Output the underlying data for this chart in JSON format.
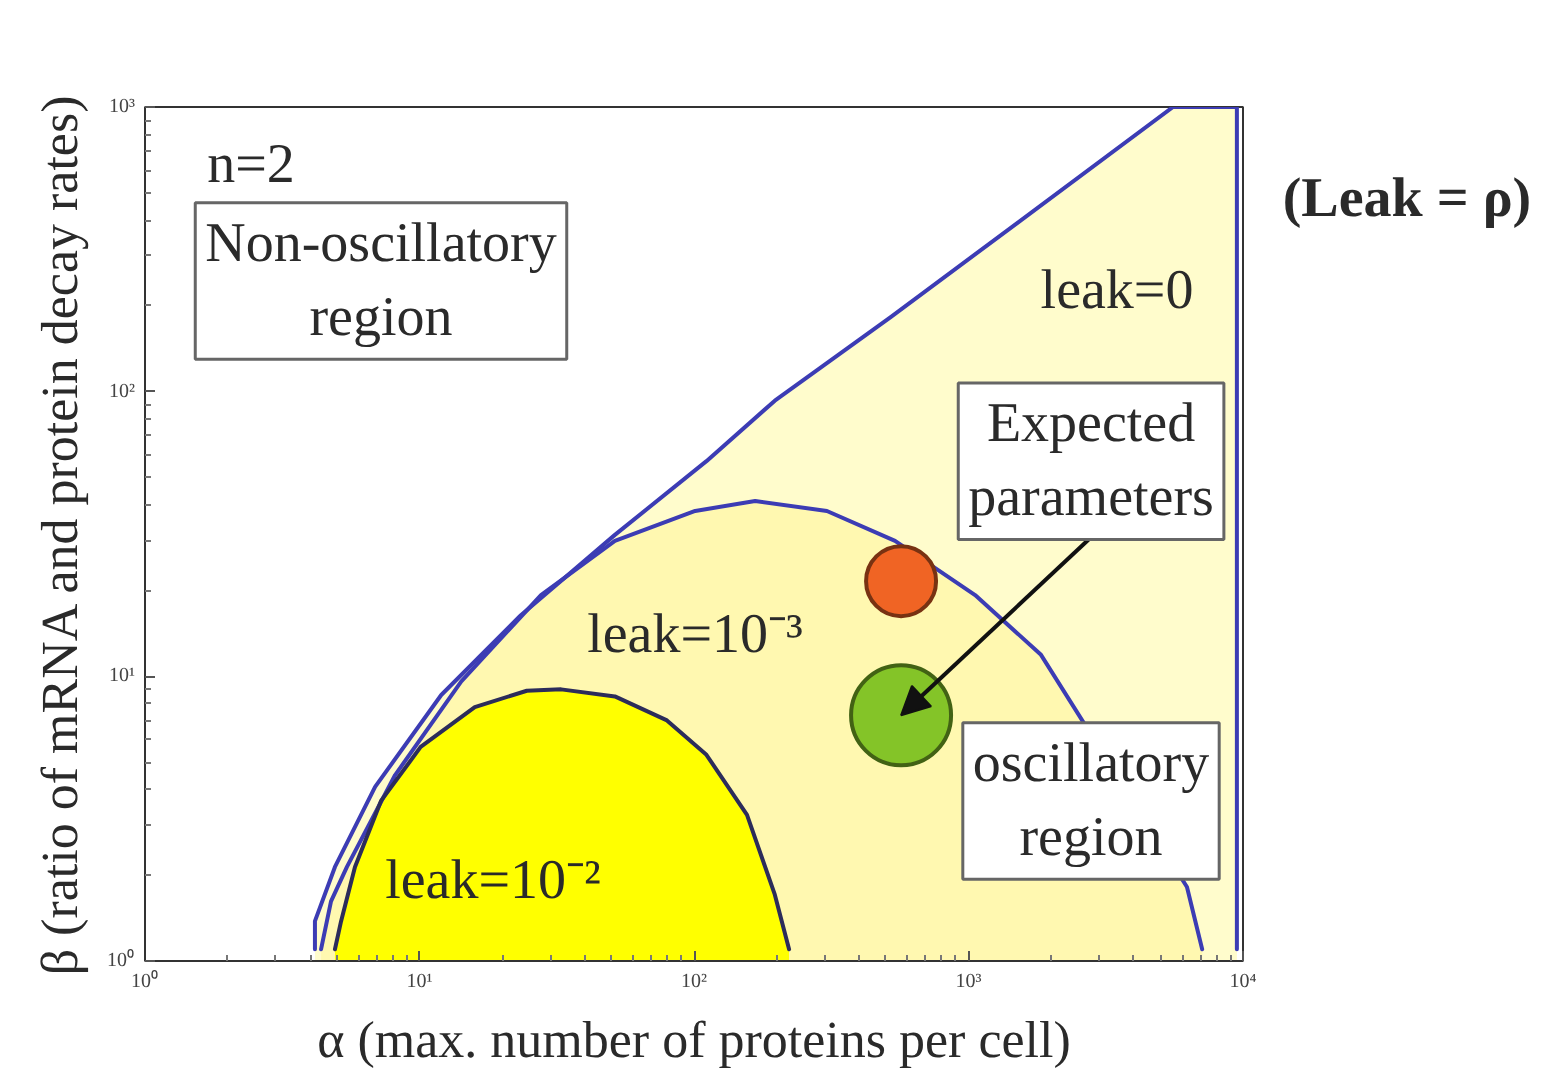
{
  "chart_data": {
    "type": "area",
    "xlabel": "α (max. number of proteins per cell)",
    "ylabel": "β (ratio of mRNA and protein decay rates)",
    "log": "xy",
    "xlim": [
      1,
      10000
    ],
    "ylim": [
      1,
      1000
    ],
    "xticks": [
      {
        "value": 1,
        "label": "10⁰"
      },
      {
        "value": 10,
        "label": "10¹"
      },
      {
        "value": 100,
        "label": "10²"
      },
      {
        "value": 1000,
        "label": "10³"
      },
      {
        "value": 10000,
        "label": "10⁴"
      }
    ],
    "yticks": [
      {
        "value": 1,
        "label": "10⁰"
      },
      {
        "value": 10,
        "label": "10¹"
      },
      {
        "value": 100,
        "label": "10²"
      },
      {
        "value": 1000,
        "label": "10³"
      }
    ],
    "series": [
      {
        "type": "line",
        "color": "#3c3cb4",
        "x": [
          4.16,
          4.16,
          4.92,
          6.89,
          12.0,
          23.4,
          51.5,
          111,
          197,
          522,
          5560,
          9500,
          9500
        ],
        "values": [
          1.1,
          1.38,
          2.14,
          4.09,
          8.6,
          16.4,
          31.4,
          57,
          93,
          183,
          1000,
          1000,
          1.1
        ]
      },
      {
        "type": "line",
        "color": "#3c3cb4",
        "x": [
          4.38,
          4.76,
          5.44,
          8.15,
          14.2,
          27.7,
          51.5,
          101,
          167,
          305,
          540,
          1057,
          1837,
          6250,
          7100
        ],
        "values": [
          1.1,
          1.62,
          2.14,
          4.5,
          9.6,
          19.3,
          29.9,
          38.1,
          41.3,
          38.1,
          29.9,
          19.3,
          11.9,
          1.82,
          1.1
        ]
      },
      {
        "type": "line",
        "color": "#2c2c5a",
        "x": [
          4.92,
          5.18,
          5.82,
          7.24,
          10.1,
          15.9,
          24.6,
          32.8,
          51.5,
          79.7,
          111,
          156,
          197,
          222
        ],
        "values": [
          1.1,
          1.38,
          2.14,
          3.65,
          5.65,
          7.8,
          8.9,
          9.0,
          8.5,
          7.0,
          5.3,
          3.26,
          1.71,
          1.1
        ]
      },
      {
        "color": "#fffccc",
        "x": [
          4.16,
          4.16,
          4.92,
          6.89,
          12.0,
          23.4,
          51.5,
          111,
          197,
          522,
          5560,
          9500,
          9500
        ],
        "values": [
          1.1,
          1.38,
          2.14,
          4.09,
          8.6,
          16.4,
          31.4,
          57,
          93,
          183,
          1000,
          1000,
          1.1
        ]
      },
      {
        "color": "#fff8b0",
        "x": [
          4.38,
          4.76,
          5.44,
          8.15,
          14.2,
          27.7,
          51.5,
          101,
          167,
          305,
          540,
          1057,
          1837,
          6250,
          7100
        ],
        "values": [
          1.1,
          1.62,
          2.14,
          4.5,
          9.6,
          19.3,
          29.9,
          38.1,
          41.3,
          38.1,
          29.9,
          19.3,
          11.9,
          1.82,
          1.1
        ]
      },
      {
        "color": "#ffff00",
        "x": [
          4.92,
          5.18,
          5.82,
          7.24,
          10.1,
          15.9,
          24.6,
          32.8,
          51.5,
          79.7,
          111,
          156,
          197,
          222
        ],
        "values": [
          1.1,
          1.38,
          2.14,
          3.65,
          5.65,
          7.8,
          8.9,
          9.0,
          8.5,
          7.0,
          5.3,
          3.26,
          1.71,
          1.1
        ]
      },
      {
        "type": "bubble",
        "x": [
          568,
          568
        ],
        "values": [
          21.6,
          7.3
        ],
        "sizes": [
          0.49,
          1
        ],
        "colors": [
          "#f06424",
          "#84c428"
        ]
      }
    ],
    "annotations": [
      "n=2",
      "Non-oscillatory region",
      "(Leak = ρ)",
      "leak=0",
      "leak=10⁻³",
      "leak=10⁻²",
      {
        "text": "Expected parameters",
        "x": 568,
        "y": 7.3
      },
      "oscillatory region"
    ]
  }
}
